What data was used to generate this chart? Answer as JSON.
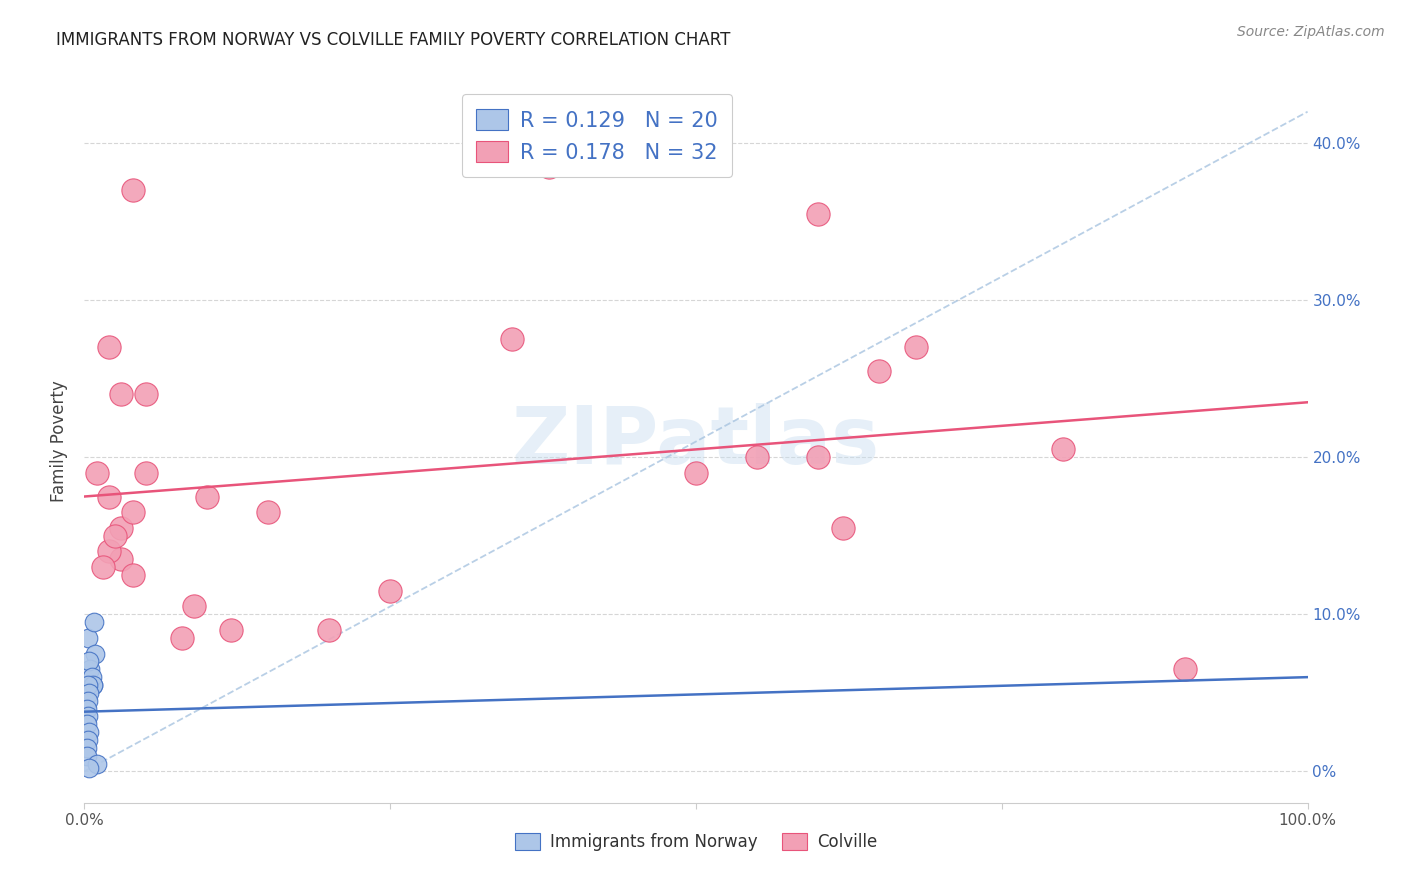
{
  "title": "IMMIGRANTS FROM NORWAY VS COLVILLE FAMILY POVERTY CORRELATION CHART",
  "source": "Source: ZipAtlas.com",
  "ylabel": "Family Poverty",
  "watermark": "ZIPatlas",
  "color_norway": "#adc6e8",
  "color_colville": "#f2a0b5",
  "color_norway_line": "#4472c4",
  "color_colville_line": "#e8547a",
  "color_diag_line": "#a8c4e0",
  "color_legend_text": "#4472c4",
  "norway_x": [
    0.003,
    0.008,
    0.009,
    0.005,
    0.007,
    0.004,
    0.006,
    0.007,
    0.003,
    0.004,
    0.003,
    0.002,
    0.003,
    0.002,
    0.004,
    0.003,
    0.002,
    0.002,
    0.01,
    0.004
  ],
  "norway_y": [
    0.085,
    0.095,
    0.075,
    0.065,
    0.055,
    0.07,
    0.06,
    0.055,
    0.055,
    0.05,
    0.045,
    0.04,
    0.035,
    0.03,
    0.025,
    0.02,
    0.015,
    0.01,
    0.005,
    0.002
  ],
  "colville_x": [
    0.01,
    0.02,
    0.04,
    0.03,
    0.05,
    0.02,
    0.03,
    0.03,
    0.04,
    0.02,
    0.015,
    0.04,
    0.025,
    0.05,
    0.5,
    0.55,
    0.65,
    0.6,
    0.35,
    0.38,
    0.1,
    0.12,
    0.2,
    0.25,
    0.62,
    0.68,
    0.8,
    0.6,
    0.08,
    0.09,
    0.15,
    0.9
  ],
  "colville_y": [
    0.19,
    0.27,
    0.37,
    0.24,
    0.24,
    0.175,
    0.135,
    0.155,
    0.165,
    0.14,
    0.13,
    0.125,
    0.15,
    0.19,
    0.19,
    0.2,
    0.255,
    0.2,
    0.275,
    0.385,
    0.175,
    0.09,
    0.09,
    0.115,
    0.155,
    0.27,
    0.205,
    0.355,
    0.085,
    0.105,
    0.165,
    0.065
  ],
  "norway_marker_size": 180,
  "colville_marker_size": 280,
  "xlim": [
    0,
    1.0
  ],
  "ylim": [
    -0.02,
    0.44
  ],
  "yticks": [
    0.0,
    0.1,
    0.2,
    0.3,
    0.4
  ],
  "ytick_labels_right": [
    "0%",
    "10.0%",
    "20.0%",
    "30.0%",
    "40.0%"
  ],
  "xticks": [
    0.0,
    0.25,
    0.5,
    0.75,
    1.0
  ],
  "xtick_labels": [
    "0.0%",
    "",
    "",
    "",
    "100.0%"
  ]
}
